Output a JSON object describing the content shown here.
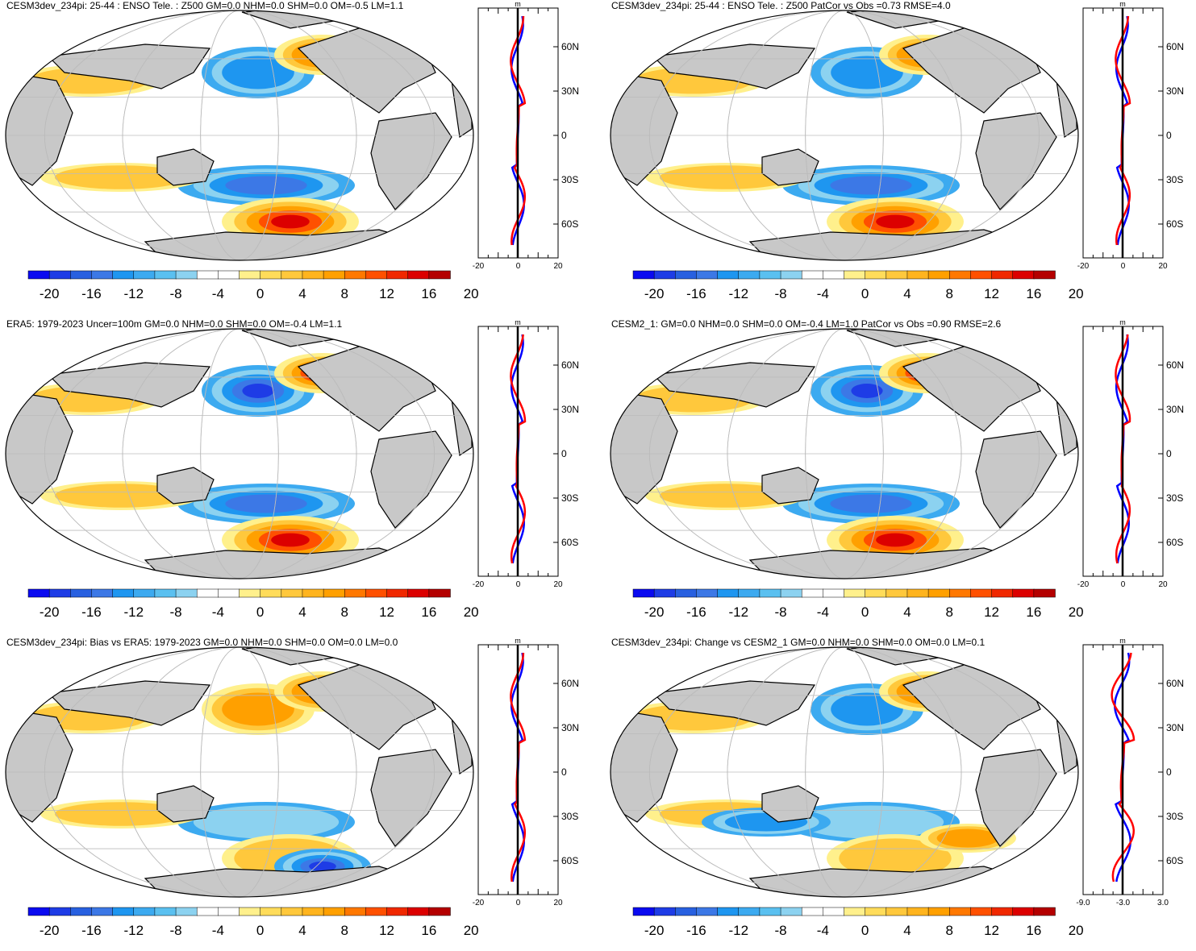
{
  "panels": [
    {
      "title": "CESM3dev_234pi: 25-44 : ENSO Tele. : Z500 GM=0.0 NHM=0.0 SHM=0.0 OM=-0.5 LM=1.1",
      "zonal_xticks": [
        "-20",
        "0",
        "20"
      ],
      "zonal_unit": "m"
    },
    {
      "title": "CESM3dev_234pi: 25-44 : ENSO Tele. : Z500 PatCor vs Obs =0.73 RMSE=4.0",
      "zonal_xticks": [
        "-20",
        "0",
        "20"
      ],
      "zonal_unit": "m"
    },
    {
      "title": "ERA5: 1979-2023 Uncer=100m GM=0.0 NHM=0.0 SHM=0.0 OM=-0.4 LM=1.1",
      "zonal_xticks": [
        "-20",
        "0",
        "20"
      ],
      "zonal_unit": "m"
    },
    {
      "title": "CESM2_1: GM=0.0 NHM=0.0 SHM=0.0 OM=-0.4 LM=1.0 PatCor vs Obs =0.90 RMSE=2.6",
      "zonal_xticks": [
        "-20",
        "0",
        "20"
      ],
      "zonal_unit": "m"
    },
    {
      "title": "CESM3dev_234pi: Bias vs ERA5: 1979-2023 GM=0.0 NHM=0.0 SHM=0.0 OM=0.0 LM=0.0",
      "zonal_xticks": [
        "-20",
        "0",
        "20"
      ],
      "zonal_unit": "m"
    },
    {
      "title": "CESM3dev_234pi: Change vs CESM2_1 GM=0.0 NHM=0.0 SHM=0.0 OM=0.0 LM=0.1",
      "zonal_xticks": [
        "-9.0",
        "-3.0",
        "3.0"
      ],
      "zonal_unit": "m"
    }
  ],
  "lat_labels": [
    "60N",
    "30N",
    "0",
    "30S",
    "60S"
  ],
  "colorbar": {
    "labels": [
      "-20",
      "-16",
      "-12",
      "-8",
      "-4",
      "0",
      "4",
      "8",
      "12",
      "16",
      "20"
    ],
    "colors": [
      "#0a0af0",
      "#1e3ce6",
      "#2860e0",
      "#3c78e6",
      "#1e96f0",
      "#3caaf0",
      "#5ac0f0",
      "#8cd2f0",
      "#ffffff",
      "#ffffff",
      "#fff08c",
      "#ffdc5a",
      "#ffc83c",
      "#ffb41e",
      "#ffa000",
      "#ff7800",
      "#ff5000",
      "#f02800",
      "#dc0000",
      "#b40000"
    ]
  },
  "colors": {
    "land": "#c8c8c8",
    "ocean": "#ffffff",
    "model_line": "#ff0000",
    "obs_line": "#0000ff"
  }
}
